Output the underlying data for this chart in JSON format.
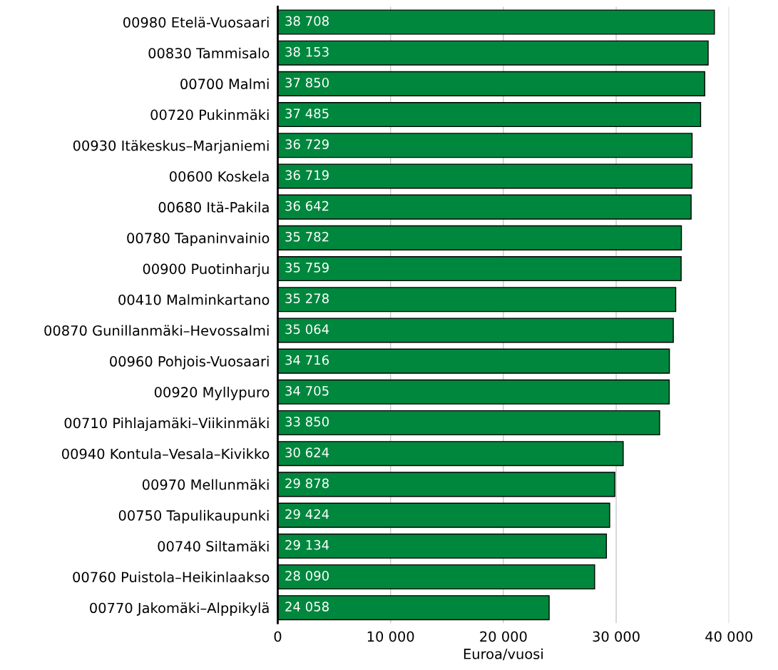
{
  "chart_data": {
    "type": "bar",
    "orientation": "horizontal",
    "xlabel": "Euroa/vuosi",
    "categories": [
      "00980 Etelä-Vuosaari",
      "00830 Tammisalo",
      "00700 Malmi",
      "00720 Pukinmäki",
      "00930 Itäkeskus–Marjaniemi",
      "00600 Koskela",
      "00680 Itä-Pakila",
      "00780 Tapaninvainio",
      "00900 Puotinharju",
      "00410 Malminkartano",
      "00870 Gunillanmäki–Hevossalmi",
      "00960 Pohjois-Vuosaari",
      "00920 Myllypuro",
      "00710 Pihlajamäki–Viikinmäki",
      "00940 Kontula–Vesala–Kivikko",
      "00970 Mellunmäki",
      "00750 Tapulikaupunki",
      "00740 Siltamäki",
      "00760 Puistola–Heikinlaakso",
      "00770 Jakomäki–Alppikylä"
    ],
    "values": [
      38708,
      38153,
      37850,
      37485,
      36729,
      36719,
      36642,
      35782,
      35759,
      35278,
      35064,
      34716,
      34705,
      33850,
      30624,
      29878,
      29424,
      29134,
      28090,
      24058
    ],
    "value_labels": [
      "38 708",
      "38 153",
      "37 850",
      "37 485",
      "36 729",
      "36 719",
      "36 642",
      "35 782",
      "35 759",
      "35 278",
      "35 064",
      "34 716",
      "34 705",
      "33 850",
      "30 624",
      "29 878",
      "29 424",
      "29 134",
      "28 090",
      "24 058"
    ],
    "color": "#00873e",
    "xlim": [
      0,
      40000
    ],
    "xticks": [
      0,
      {
        "value": 10000,
        "label": "10 000"
      },
      {
        "value": 20000,
        "label": "20 000"
      },
      {
        "value": 30000,
        "label": "30 000"
      },
      {
        "value": 40000,
        "label": "40 000"
      }
    ],
    "grid": "x",
    "legend": false
  }
}
